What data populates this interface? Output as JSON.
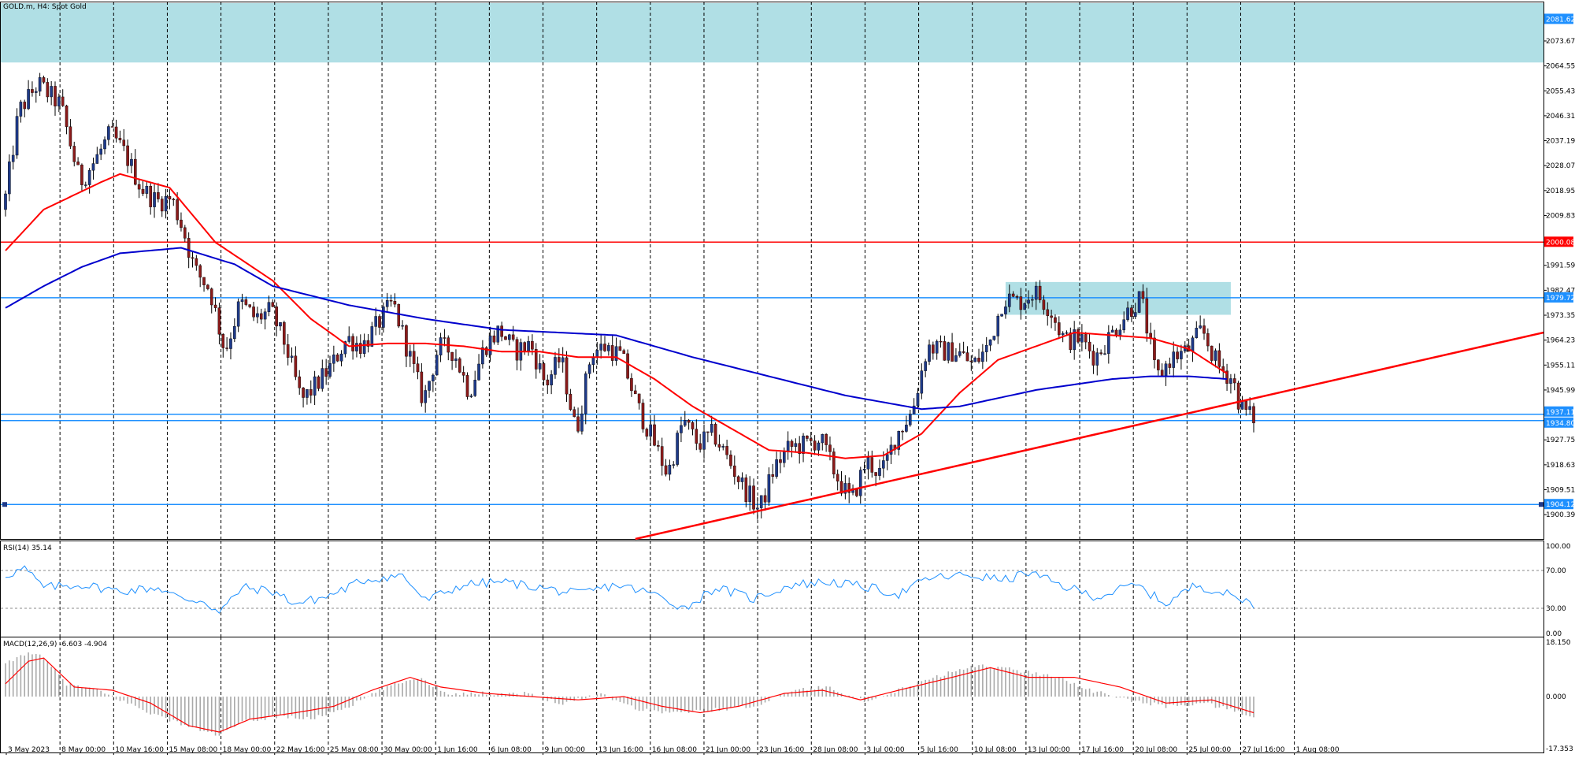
{
  "window": {
    "symbol_title": "GOLD.m, H4: Spot Gold"
  },
  "chart_data": [
    {
      "type": "candlestick",
      "title": "GOLD.m, H4: Spot Gold",
      "ylim": [
        1891.5,
        2087.5
      ],
      "y_ticks": [
        "2073.67",
        "2064.55",
        "2055.43",
        "2046.31",
        "2037.19",
        "2028.07",
        "2018.95",
        "2009.83",
        "1991.59",
        "1982.47",
        "1973.35",
        "1964.23",
        "1955.11",
        "1945.99",
        "1927.75",
        "1918.63",
        "1909.51",
        "1900.39"
      ],
      "x_labels": [
        "3 May 2023",
        "8 May 00:00",
        "10 May 16:00",
        "15 May 08:00",
        "18 May 00:00",
        "22 May 16:00",
        "25 May 08:00",
        "30 May 00:00",
        "1 Jun 16:00",
        "6 Jun 08:00",
        "9 Jun 00:00",
        "13 Jun 16:00",
        "16 Jun 08:00",
        "21 Jun 00:00",
        "23 Jun 16:00",
        "28 Jun 08:00",
        "3 Jul 00:00",
        "5 Jul 16:00",
        "10 Jul 08:00",
        "13 Jul 00:00",
        "17 Jul 16:00",
        "20 Jul 08:00",
        "25 Jul 00:00",
        "27 Jul 16:00",
        "1 Aug 08:00"
      ],
      "price_anchors": [
        [
          0,
          2012
        ],
        [
          4,
          2048
        ],
        [
          9,
          2058
        ],
        [
          15,
          2050
        ],
        [
          20,
          2022
        ],
        [
          24,
          2030
        ],
        [
          28,
          2040
        ],
        [
          32,
          2032
        ],
        [
          36,
          2020
        ],
        [
          40,
          2015
        ],
        [
          44,
          2016
        ],
        [
          47,
          2005
        ],
        [
          50,
          1990
        ],
        [
          54,
          1983
        ],
        [
          58,
          1960
        ],
        [
          62,
          1978
        ],
        [
          66,
          1972
        ],
        [
          70,
          1975
        ],
        [
          74,
          1962
        ],
        [
          78,
          1942
        ],
        [
          82,
          1948
        ],
        [
          86,
          1955
        ],
        [
          90,
          1965
        ],
        [
          94,
          1962
        ],
        [
          98,
          1970
        ],
        [
          102,
          1978
        ],
        [
          106,
          1960
        ],
        [
          110,
          1942
        ],
        [
          114,
          1962
        ],
        [
          118,
          1960
        ],
        [
          122,
          1945
        ],
        [
          126,
          1962
        ],
        [
          130,
          1968
        ],
        [
          134,
          1960
        ],
        [
          138,
          1963
        ],
        [
          142,
          1948
        ],
        [
          146,
          1958
        ],
        [
          150,
          1930
        ],
        [
          154,
          1960
        ],
        [
          158,
          1962
        ],
        [
          162,
          1958
        ],
        [
          166,
          1940
        ],
        [
          170,
          1928
        ],
        [
          174,
          1915
        ],
        [
          178,
          1935
        ],
        [
          182,
          1926
        ],
        [
          186,
          1930
        ],
        [
          190,
          1920
        ],
        [
          194,
          1910
        ],
        [
          198,
          1902
        ],
        [
          202,
          1918
        ],
        [
          206,
          1925
        ],
        [
          210,
          1926
        ],
        [
          214,
          1928
        ],
        [
          218,
          1915
        ],
        [
          222,
          1905
        ],
        [
          226,
          1920
        ],
        [
          230,
          1915
        ],
        [
          234,
          1930
        ],
        [
          238,
          1938
        ],
        [
          242,
          1962
        ],
        [
          246,
          1960
        ],
        [
          250,
          1960
        ],
        [
          254,
          1955
        ],
        [
          258,
          1962
        ],
        [
          262,
          1980
        ],
        [
          266,
          1978
        ],
        [
          270,
          1982
        ],
        [
          274,
          1976
        ],
        [
          278,
          1964
        ],
        [
          282,
          1965
        ],
        [
          286,
          1958
        ],
        [
          290,
          1966
        ],
        [
          294,
          1974
        ],
        [
          298,
          1980
        ],
        [
          302,
          1950
        ],
        [
          306,
          1958
        ],
        [
          310,
          1960
        ],
        [
          314,
          1968
        ],
        [
          318,
          1955
        ],
        [
          322,
          1950
        ],
        [
          324,
          1940
        ],
        [
          327,
          1936
        ]
      ],
      "horizontal_levels": [
        {
          "label": "2000.08",
          "color": "#ff0000"
        },
        {
          "label": "1979.72",
          "color": "#1e90ff"
        },
        {
          "label": "1937.11",
          "color": "#1e90ff"
        },
        {
          "label": "1934.80",
          "color": "#1e90ff"
        },
        {
          "label": "1904.12",
          "color": "#1e90ff"
        }
      ],
      "top_label": "2081.62",
      "zones": [
        {
          "y_top": 2087.5,
          "y_bottom": 2065.8,
          "color": "#b0dfe5"
        },
        {
          "y_top": 1985.5,
          "y_bottom": 1973.5,
          "color": "#b0dfe5"
        }
      ],
      "trendline": {
        "from": [
          165,
          1891.5
        ],
        "to": [
          420,
          1967
        ],
        "color": "#ff0000"
      },
      "moving_averages": [
        {
          "color": "#ff0000",
          "anchors": [
            [
              0,
              1997
            ],
            [
              10,
              2012
            ],
            [
              25,
              2022
            ],
            [
              30,
              2025
            ],
            [
              43,
              2020
            ],
            [
              55,
              2000
            ],
            [
              70,
              1986
            ],
            [
              80,
              1972
            ],
            [
              90,
              1962
            ],
            [
              100,
              1963
            ],
            [
              110,
              1963
            ],
            [
              120,
              1962
            ],
            [
              130,
              1960
            ],
            [
              140,
              1960
            ],
            [
              150,
              1958
            ],
            [
              160,
              1958
            ],
            [
              170,
              1950
            ],
            [
              180,
              1940
            ],
            [
              190,
              1932
            ],
            [
              200,
              1924
            ],
            [
              210,
              1923
            ],
            [
              220,
              1921
            ],
            [
              230,
              1922
            ],
            [
              240,
              1930
            ],
            [
              250,
              1945
            ],
            [
              260,
              1957
            ],
            [
              270,
              1962
            ],
            [
              280,
              1967
            ],
            [
              290,
              1966
            ],
            [
              300,
              1965
            ],
            [
              310,
              1961
            ],
            [
              320,
              1952
            ]
          ]
        },
        {
          "color": "#0000cd",
          "anchors": [
            [
              0,
              1976
            ],
            [
              10,
              1984
            ],
            [
              20,
              1991
            ],
            [
              30,
              1996
            ],
            [
              46,
              1998
            ],
            [
              60,
              1992
            ],
            [
              70,
              1984
            ],
            [
              90,
              1977
            ],
            [
              110,
              1972
            ],
            [
              130,
              1968
            ],
            [
              160,
              1966
            ],
            [
              180,
              1958
            ],
            [
              200,
              1951
            ],
            [
              220,
              1944
            ],
            [
              240,
              1939
            ],
            [
              250,
              1940
            ],
            [
              260,
              1943
            ],
            [
              270,
              1946
            ],
            [
              280,
              1948
            ],
            [
              290,
              1950
            ],
            [
              300,
              1951
            ],
            [
              310,
              1951
            ],
            [
              320,
              1950
            ]
          ]
        }
      ],
      "rsi": {
        "label": "RSI(14) 35.14",
        "ylim": [
          0,
          100
        ],
        "ticks": [
          "100.00",
          "70.00",
          "30.00",
          "0.00"
        ],
        "levels": [
          70,
          30
        ],
        "color": "#1e90ff",
        "anchors": [
          [
            0,
            65
          ],
          [
            5,
            72
          ],
          [
            10,
            52
          ],
          [
            20,
            55
          ],
          [
            30,
            48
          ],
          [
            40,
            52
          ],
          [
            46,
            40
          ],
          [
            52,
            38
          ],
          [
            56,
            25
          ],
          [
            62,
            52
          ],
          [
            70,
            48
          ],
          [
            76,
            35
          ],
          [
            84,
            42
          ],
          [
            94,
            60
          ],
          [
            104,
            65
          ],
          [
            110,
            38
          ],
          [
            120,
            55
          ],
          [
            130,
            58
          ],
          [
            140,
            52
          ],
          [
            150,
            45
          ],
          [
            160,
            55
          ],
          [
            170,
            45
          ],
          [
            178,
            30
          ],
          [
            186,
            52
          ],
          [
            196,
            40
          ],
          [
            206,
            55
          ],
          [
            216,
            58
          ],
          [
            226,
            52
          ],
          [
            234,
            45
          ],
          [
            242,
            62
          ],
          [
            252,
            65
          ],
          [
            262,
            60
          ],
          [
            268,
            68
          ],
          [
            276,
            55
          ],
          [
            286,
            42
          ],
          [
            296,
            55
          ],
          [
            304,
            35
          ],
          [
            312,
            55
          ],
          [
            320,
            45
          ],
          [
            327,
            35
          ]
        ]
      },
      "macd": {
        "label": "MACD(12,26,9) -6.603 -4.904",
        "ylim": [
          -17.353,
          18.15
        ],
        "ticks": [
          "18.150",
          "0.000",
          "-17.353"
        ],
        "hist_color": "#a9a9a9",
        "signal_color": "#ff0000",
        "hist_anchors": [
          [
            0,
            10
          ],
          [
            6,
            14
          ],
          [
            10,
            12
          ],
          [
            16,
            4
          ],
          [
            24,
            2
          ],
          [
            32,
            -2
          ],
          [
            40,
            -6
          ],
          [
            50,
            -10
          ],
          [
            56,
            -12
          ],
          [
            62,
            -8
          ],
          [
            72,
            -6
          ],
          [
            80,
            -7
          ],
          [
            90,
            -3
          ],
          [
            100,
            3
          ],
          [
            108,
            6
          ],
          [
            116,
            1
          ],
          [
            126,
            1
          ],
          [
            136,
            1
          ],
          [
            146,
            -2
          ],
          [
            156,
            1
          ],
          [
            166,
            -4
          ],
          [
            176,
            -5
          ],
          [
            186,
            -4
          ],
          [
            196,
            -3
          ],
          [
            206,
            2
          ],
          [
            216,
            3
          ],
          [
            226,
            -2
          ],
          [
            236,
            3
          ],
          [
            246,
            7
          ],
          [
            256,
            10
          ],
          [
            266,
            8
          ],
          [
            276,
            6
          ],
          [
            284,
            2
          ],
          [
            294,
            -1
          ],
          [
            304,
            -3
          ],
          [
            314,
            -2
          ],
          [
            327,
            -6
          ]
        ],
        "signal_anchors": [
          [
            0,
            4
          ],
          [
            6,
            11
          ],
          [
            10,
            12
          ],
          [
            18,
            3
          ],
          [
            28,
            2
          ],
          [
            38,
            -2
          ],
          [
            48,
            -9
          ],
          [
            56,
            -11
          ],
          [
            64,
            -7
          ],
          [
            76,
            -5
          ],
          [
            86,
            -3
          ],
          [
            96,
            2
          ],
          [
            106,
            6
          ],
          [
            114,
            3
          ],
          [
            126,
            1
          ],
          [
            138,
            0
          ],
          [
            150,
            -1
          ],
          [
            162,
            0
          ],
          [
            172,
            -3
          ],
          [
            182,
            -5
          ],
          [
            192,
            -3
          ],
          [
            204,
            1
          ],
          [
            214,
            2
          ],
          [
            224,
            -1
          ],
          [
            234,
            2
          ],
          [
            248,
            6
          ],
          [
            258,
            9
          ],
          [
            268,
            6
          ],
          [
            280,
            6
          ],
          [
            292,
            3
          ],
          [
            304,
            -2
          ],
          [
            316,
            -1
          ],
          [
            327,
            -5
          ]
        ]
      }
    }
  ]
}
